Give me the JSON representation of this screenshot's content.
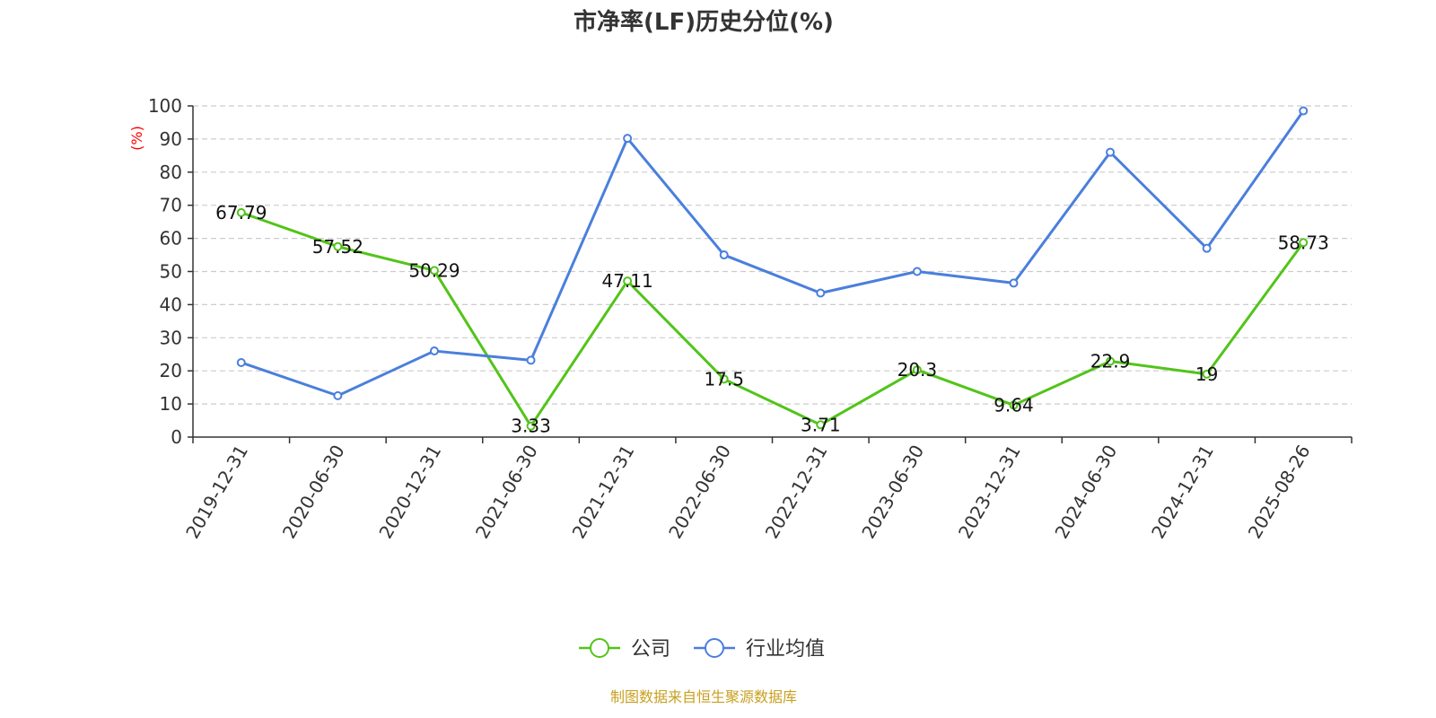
{
  "title": "市净率(LF)历史分位(%)",
  "source": "制图数据来自恒生聚源数据库",
  "colors": {
    "company": "#52c41a",
    "industry": "#4a7fdc",
    "unit": "#ff0000",
    "source": "#c8a020"
  },
  "chart_data": {
    "type": "line",
    "title": "市净率(LF)历史分位(%)",
    "ylabel": "(%)",
    "ylim": [
      0,
      100
    ],
    "yticks": [
      0,
      10,
      20,
      30,
      40,
      50,
      60,
      70,
      80,
      90,
      100
    ],
    "grid": true,
    "legend_position": "bottom",
    "categories": [
      "2019-12-31",
      "2020-06-30",
      "2020-12-31",
      "2021-06-30",
      "2021-12-31",
      "2022-06-30",
      "2022-12-31",
      "2023-06-30",
      "2023-12-31",
      "2024-06-30",
      "2024-12-31",
      "2025-08-26"
    ],
    "series": [
      {
        "name": "公司",
        "color": "#52c41a",
        "show_labels": true,
        "values": [
          67.79,
          57.52,
          50.29,
          3.33,
          47.11,
          17.5,
          3.71,
          20.3,
          9.64,
          22.9,
          19,
          58.73
        ]
      },
      {
        "name": "行业均值",
        "color": "#4a7fdc",
        "show_labels": false,
        "values": [
          22.5,
          12.5,
          26,
          23.2,
          90.2,
          55,
          43.5,
          50,
          46.5,
          86,
          57,
          98.5
        ]
      }
    ]
  }
}
